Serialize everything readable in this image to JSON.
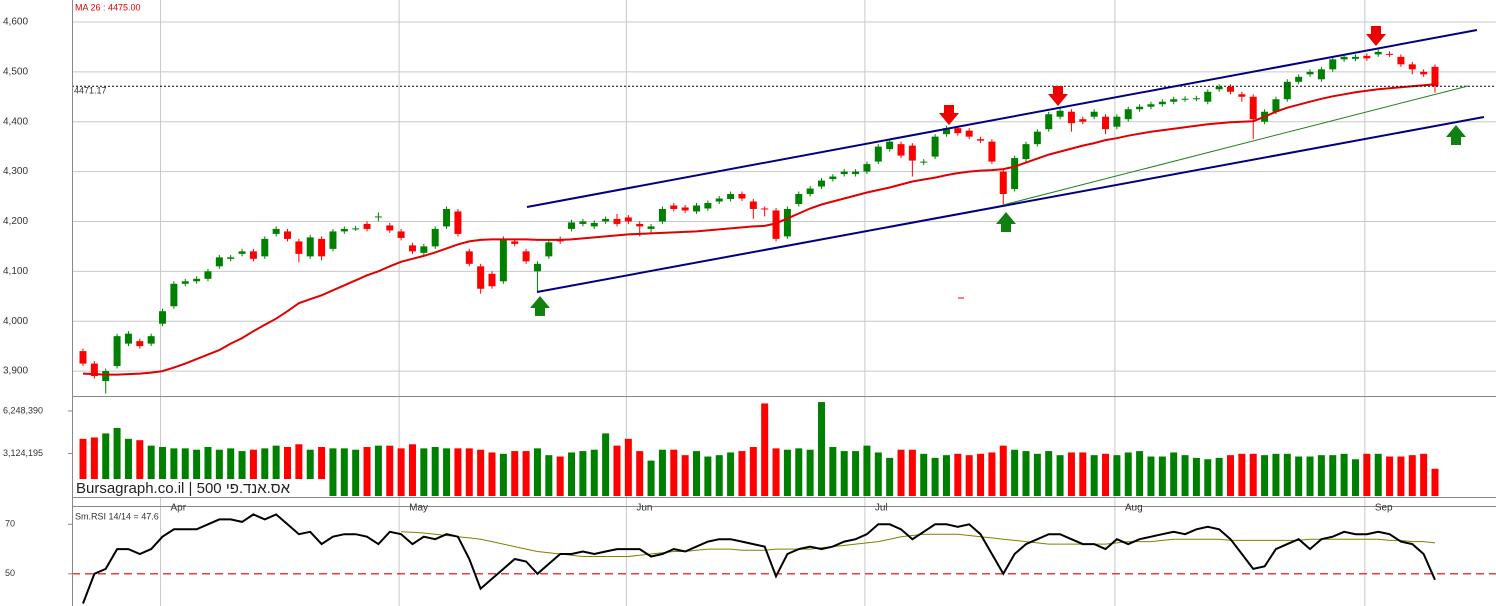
{
  "chart_data": [
    {
      "type": "candlestick",
      "title": "MA 26 : 4475.00",
      "categories": [
        null,
        null,
        null,
        null,
        null,
        null,
        null,
        "Apr",
        null,
        null,
        null,
        null,
        null,
        null,
        null,
        null,
        null,
        null,
        null,
        null,
        null,
        null,
        null,
        null,
        null,
        null,
        null,
        null,
        "May",
        null,
        null,
        null,
        null,
        null,
        null,
        null,
        null,
        null,
        null,
        null,
        null,
        null,
        null,
        null,
        null,
        null,
        null,
        null,
        "Jun",
        null,
        null,
        null,
        null,
        null,
        null,
        null,
        null,
        null,
        null,
        null,
        null,
        null,
        null,
        null,
        null,
        null,
        null,
        null,
        null,
        "Jul",
        null,
        null,
        null,
        null,
        null,
        null,
        null,
        null,
        null,
        null,
        null,
        null,
        null,
        null,
        null,
        null,
        null,
        null,
        null,
        null,
        null,
        "Aug",
        null,
        null,
        null,
        null,
        null,
        null,
        null,
        null,
        null,
        null,
        null,
        null,
        null,
        null,
        null,
        null,
        null,
        null,
        null,
        null,
        null,
        "Sep",
        null,
        null,
        null,
        null,
        null,
        null
      ],
      "open": [
        3940,
        3915,
        3880,
        3910,
        3955,
        3960,
        3955,
        3995,
        4030,
        4075,
        4080,
        4085,
        4110,
        4125,
        4135,
        4140,
        4130,
        4175,
        4180,
        4160,
        4130,
        4165,
        4145,
        4180,
        4186,
        4195,
        4208,
        4192,
        4180,
        4152,
        4137,
        4150,
        4190,
        4220,
        4140,
        4110,
        4095,
        4080,
        4160,
        4140,
        4100,
        4130,
        4165,
        4185,
        4195,
        4190,
        4200,
        4205,
        4208,
        4195,
        4185,
        4200,
        4232,
        4228,
        4220,
        4226,
        4240,
        4245,
        4255,
        4240,
        4226,
        4222,
        4170,
        4235,
        4255,
        4270,
        4285,
        4295,
        4295,
        4300,
        4320,
        4345,
        4355,
        4352,
        4318,
        4330,
        4375,
        4387,
        4382,
        4365,
        4360,
        4300,
        4265,
        4325,
        4355,
        4385,
        4410,
        4420,
        4405,
        4410,
        4410,
        4390,
        4405,
        4425,
        4430,
        4435,
        4440,
        4445,
        4446,
        4440,
        4465,
        4470,
        4455,
        4450,
        4400,
        4420,
        4445,
        4480,
        4495,
        4485,
        4505,
        4525,
        4526,
        4532,
        4535,
        4536,
        4530,
        4515,
        4500,
        4510
      ],
      "high": [
        3945,
        3920,
        3905,
        3975,
        3980,
        3965,
        3975,
        4025,
        4080,
        4085,
        4090,
        4105,
        4133,
        4133,
        4145,
        4145,
        4170,
        4190,
        4185,
        4165,
        4173,
        4170,
        4185,
        4190,
        4191,
        4200,
        4218,
        4197,
        4185,
        4157,
        4155,
        4190,
        4230,
        4225,
        4145,
        4115,
        4100,
        4170,
        4165,
        4145,
        4120,
        4163,
        4170,
        4203,
        4205,
        4202,
        4210,
        4215,
        4213,
        4200,
        4195,
        4230,
        4237,
        4233,
        4237,
        4242,
        4251,
        4260,
        4260,
        4245,
        4230,
        4227,
        4230,
        4260,
        4271,
        4287,
        4295,
        4305,
        4305,
        4320,
        4355,
        4365,
        4360,
        4357,
        4325,
        4375,
        4392,
        4392,
        4387,
        4370,
        4365,
        4305,
        4332,
        4360,
        4385,
        4420,
        4427,
        4425,
        4410,
        4425,
        4415,
        4415,
        4430,
        4435,
        4440,
        4445,
        4450,
        4451,
        4452,
        4465,
        4475,
        4475,
        4460,
        4455,
        4425,
        4450,
        4485,
        4495,
        4505,
        4510,
        4530,
        4535,
        4535,
        4537,
        4545,
        4541,
        4535,
        4520,
        4505,
        4515
      ],
      "low": [
        3910,
        3885,
        3855,
        3905,
        3950,
        3945,
        3950,
        3990,
        4025,
        4070,
        4075,
        4080,
        4105,
        4120,
        4130,
        4120,
        4125,
        4170,
        4160,
        4118,
        4125,
        4122,
        4140,
        4175,
        4181,
        4180,
        4200,
        4177,
        4162,
        4135,
        4132,
        4145,
        4185,
        4170,
        4110,
        4055,
        4065,
        4075,
        4150,
        4115,
        4060,
        4125,
        4155,
        4180,
        4190,
        4185,
        4195,
        4190,
        4195,
        4170,
        4175,
        4195,
        4220,
        4217,
        4215,
        4221,
        4235,
        4240,
        4241,
        4205,
        4210,
        4160,
        4165,
        4230,
        4250,
        4265,
        4280,
        4290,
        4290,
        4295,
        4315,
        4340,
        4327,
        4290,
        4313,
        4325,
        4370,
        4372,
        4365,
        4357,
        4315,
        4230,
        4260,
        4320,
        4350,
        4380,
        4405,
        4380,
        4395,
        4405,
        4375,
        4385,
        4400,
        4420,
        4425,
        4430,
        4435,
        4440,
        4441,
        4435,
        4460,
        4455,
        4440,
        4365,
        4395,
        4415,
        4440,
        4475,
        4490,
        4480,
        4500,
        4520,
        4521,
        4522,
        4530,
        4530,
        4510,
        4495,
        4490,
        4458
      ],
      "close": [
        3915,
        3890,
        3900,
        3970,
        3975,
        3950,
        3970,
        4020,
        4075,
        4080,
        4085,
        4100,
        4128,
        4128,
        4140,
        4125,
        4165,
        4185,
        4165,
        4135,
        4168,
        4130,
        4180,
        4185,
        4186,
        4185,
        4210,
        4182,
        4167,
        4140,
        4150,
        4185,
        4225,
        4175,
        4115,
        4065,
        4070,
        4165,
        4155,
        4120,
        4115,
        4158,
        4160,
        4198,
        4200,
        4197,
        4205,
        4195,
        4200,
        4190,
        4190,
        4225,
        4225,
        4222,
        4232,
        4237,
        4246,
        4255,
        4246,
        4225,
        4224,
        4165,
        4225,
        4255,
        4266,
        4282,
        4290,
        4300,
        4300,
        4315,
        4350,
        4360,
        4332,
        4322,
        4320,
        4370,
        4387,
        4377,
        4370,
        4362,
        4320,
        4255,
        4327,
        4355,
        4380,
        4415,
        4422,
        4397,
        4400,
        4420,
        4385,
        4410,
        4425,
        4430,
        4435,
        4440,
        4445,
        4446,
        4447,
        4460,
        4470,
        4460,
        4450,
        4405,
        4420,
        4445,
        4480,
        4490,
        4500,
        4505,
        4525,
        4530,
        4530,
        4527,
        4540,
        4535,
        4515,
        4505,
        4495,
        4471.17
      ],
      "up_color": "#008000",
      "down_color": "#ff0000",
      "ma": {
        "color": "#e00000",
        "values": [
          3895,
          3894,
          3893,
          3893,
          3894,
          3895,
          3897,
          3900,
          3907,
          3915,
          3924,
          3933,
          3942,
          3955,
          3966,
          3980,
          3993,
          4005,
          4020,
          4036,
          4044,
          4052,
          4062,
          4072,
          4082,
          4092,
          4100,
          4110,
          4119,
          4125,
          4131,
          4138,
          4146,
          4154,
          4160,
          4163,
          4164,
          4164,
          4164,
          4164,
          4163,
          4163,
          4163,
          4164,
          4166,
          4168,
          4170,
          4172,
          4174,
          4175,
          4176,
          4177,
          4178,
          4179,
          4180,
          4182,
          4184,
          4186,
          4188,
          4190,
          4191,
          4196,
          4206,
          4216,
          4226,
          4234,
          4240,
          4246,
          4252,
          4258,
          4263,
          4268,
          4274,
          4280,
          4284,
          4288,
          4293,
          4297,
          4300,
          4302,
          4303,
          4305,
          4310,
          4318,
          4326,
          4334,
          4340,
          4346,
          4352,
          4357,
          4363,
          4367,
          4372,
          4376,
          4380,
          4383,
          4386,
          4389,
          4392,
          4395,
          4397,
          4399,
          4400,
          4401,
          4410,
          4420,
          4428,
          4434,
          4440,
          4446,
          4451,
          4455,
          4459,
          4462,
          4465,
          4467,
          4469,
          4471,
          4473,
          4475
        ]
      },
      "last_price": {
        "value": 4471.17,
        "label": "4471.17"
      },
      "ylim": [
        3850,
        4644
      ],
      "yticks": [
        {
          "value": 3900,
          "label": "3,900"
        },
        {
          "value": 4000,
          "label": "4,000"
        },
        {
          "value": 4100,
          "label": "4,100"
        },
        {
          "value": 4200,
          "label": "4,200"
        },
        {
          "value": 4300,
          "label": "4,300"
        },
        {
          "value": 4400,
          "label": "4,400"
        },
        {
          "value": 4500,
          "label": "4,500"
        },
        {
          "value": 4600,
          "label": "4,600"
        }
      ],
      "grid": true
    },
    {
      "type": "bar",
      "title": "Bursagraph.co.il | 500 אס.אנד.פי",
      "values": [
        4200000,
        4300000,
        4600000,
        5000000,
        4200000,
        4100000,
        3700000,
        3600000,
        3500000,
        3500000,
        3400000,
        3600000,
        3400000,
        3500000,
        3300000,
        3400000,
        3500000,
        3700000,
        3600000,
        3800000,
        3400000,
        3600000,
        3500000,
        3500000,
        3400000,
        3600000,
        3700000,
        3700000,
        3500000,
        3800000,
        3500000,
        3600000,
        3500000,
        3500000,
        3500000,
        3400000,
        3200000,
        3100000,
        3300000,
        3300000,
        3500000,
        3000000,
        2900000,
        3200000,
        3300000,
        3400000,
        4600000,
        3700000,
        4200000,
        3300000,
        2600000,
        3400000,
        3400000,
        3000000,
        3300000,
        2900000,
        3000000,
        3200000,
        3300000,
        3600000,
        6800000,
        3500000,
        3400000,
        3500000,
        3400000,
        6900000,
        3600000,
        3300000,
        3300000,
        3700000,
        3200000,
        2800000,
        3400000,
        3400000,
        3100000,
        2800000,
        3000000,
        3100000,
        3000000,
        3100000,
        3200000,
        3700000,
        3400000,
        3300000,
        3100000,
        3300000,
        3000000,
        3200000,
        3200000,
        3000000,
        3100000,
        3000000,
        3200000,
        3300000,
        2900000,
        2900000,
        3200000,
        3000000,
        2800000,
        2700000,
        2800000,
        3000000,
        3100000,
        3100000,
        3000000,
        3100000,
        3100000,
        2900000,
        2900000,
        3000000,
        3000000,
        3100000,
        2700000,
        3100000,
        3100000,
        2900000,
        2900000,
        3000000,
        3100000,
        2000000
      ],
      "ylim": [
        0,
        7200000
      ],
      "yticks": [
        {
          "value": 3124195,
          "label": "3,124,195"
        },
        {
          "value": 6248390,
          "label": "6,248,390"
        }
      ]
    },
    {
      "type": "line",
      "title": "Sm.RSI 14/14 = 47.6",
      "series": [
        {
          "color": "#000000",
          "values": [
            38,
            50,
            52,
            60,
            60,
            58,
            60,
            65,
            68,
            68,
            68,
            70,
            72,
            72,
            71,
            74,
            72,
            74,
            70,
            66,
            67,
            62,
            65,
            66,
            66,
            65,
            62,
            67,
            66,
            62,
            65,
            64,
            66,
            65,
            56,
            44,
            48,
            52,
            56,
            55,
            50,
            54,
            58,
            58,
            59,
            58,
            59,
            60,
            60,
            60,
            57,
            58,
            60,
            59,
            61,
            63,
            64,
            64,
            63,
            62,
            61,
            49,
            58,
            60,
            61,
            60,
            61,
            63,
            64,
            66,
            70,
            70,
            68,
            64,
            67,
            70,
            70,
            69,
            70,
            66,
            58,
            50,
            58,
            62,
            64,
            66,
            66,
            64,
            62,
            62,
            60,
            64,
            62,
            64,
            65,
            66,
            67,
            66,
            68,
            69,
            68,
            64,
            58,
            52,
            53,
            60,
            62,
            64,
            60,
            64,
            65,
            67,
            66,
            66,
            67,
            66,
            63,
            62,
            58,
            47.6
          ]
        },
        {
          "color": "#808000",
          "values": [
            null,
            null,
            null,
            null,
            null,
            null,
            null,
            null,
            null,
            null,
            null,
            null,
            null,
            null,
            null,
            null,
            null,
            null,
            null,
            null,
            null,
            null,
            null,
            null,
            null,
            null,
            null,
            null,
            67,
            66.8,
            66.5,
            66,
            65.5,
            65,
            64.5,
            64,
            63,
            62,
            61,
            60,
            59,
            58.5,
            58,
            57.5,
            57,
            57,
            57,
            57,
            57,
            57.5,
            58,
            58.5,
            59,
            59,
            59.5,
            60,
            60,
            60,
            59.5,
            59.5,
            59.5,
            60,
            60,
            60,
            60,
            60.5,
            61,
            61.5,
            62,
            62.5,
            63,
            64,
            65,
            65.5,
            66,
            66,
            66,
            66,
            65.5,
            65,
            64.5,
            64,
            63.5,
            63,
            62.5,
            62,
            62,
            62,
            62,
            62,
            62,
            62.5,
            63,
            63,
            63,
            63.5,
            64,
            64,
            64,
            64,
            64,
            63.5,
            63.5,
            63.5,
            63.5,
            63.5,
            63.5,
            63.5,
            64,
            64,
            64,
            64,
            64,
            64,
            64,
            63.5,
            63.5,
            63,
            63,
            62.5
          ]
        }
      ],
      "reference_line": {
        "value": 50,
        "color": "#e00000"
      },
      "ylim": [
        37,
        77
      ],
      "yticks": [
        50,
        70
      ]
    }
  ]
}
